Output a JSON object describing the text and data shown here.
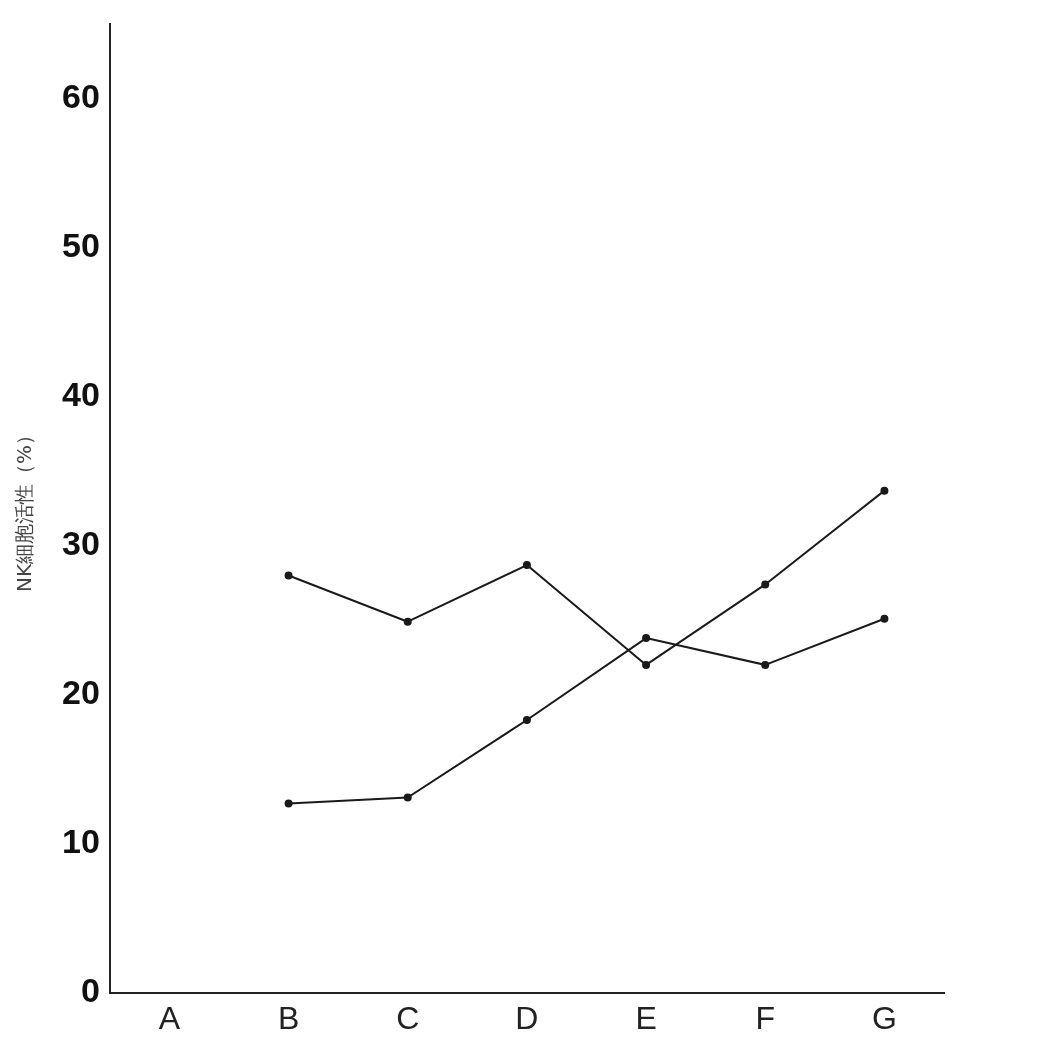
{
  "chart_data": {
    "type": "line",
    "ylabel": "NK細胞活性（%）",
    "categories": [
      "A",
      "B",
      "C",
      "D",
      "E",
      "F",
      "G"
    ],
    "series": [
      {
        "color": "#1a1a1a",
        "values": [
          null,
          28.0,
          24.9,
          28.7,
          22.0,
          27.4,
          33.7
        ]
      },
      {
        "color": "#1a1a1a",
        "values": [
          null,
          12.7,
          13.1,
          18.3,
          23.8,
          22.0,
          25.1
        ]
      }
    ],
    "ylim": [
      0,
      65
    ],
    "yticks": [
      0,
      10,
      20,
      30,
      40,
      50,
      60
    ],
    "grid": false,
    "legend": false,
    "marker": "circle",
    "line_style": "solid"
  }
}
